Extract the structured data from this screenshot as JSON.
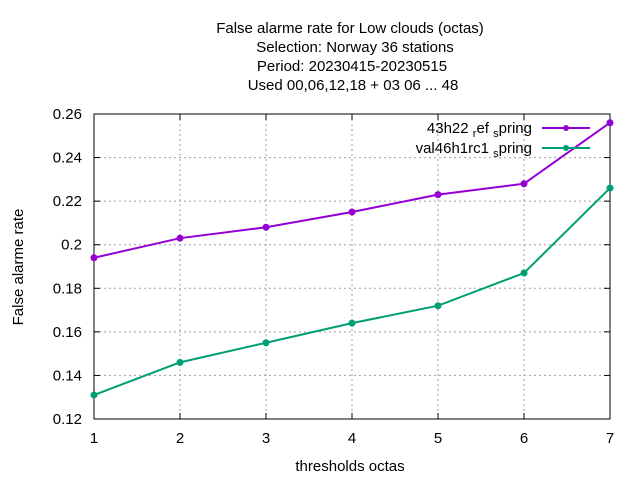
{
  "chart_data": {
    "type": "line",
    "title_lines": [
      "False alarme rate  for Low clouds (octas)",
      "Selection: Norway      36 stations",
      "Period: 20230415-20230515",
      "Used  00,06,12,18  + 03 06 ... 48"
    ],
    "xlabel": "thresholds octas",
    "ylabel": "False alarme rate",
    "x": [
      1,
      2,
      3,
      4,
      5,
      6,
      7
    ],
    "xlim": [
      1,
      7
    ],
    "ylim": [
      0.12,
      0.26
    ],
    "yticks": [
      0.12,
      0.14,
      0.16,
      0.18,
      0.2,
      0.22,
      0.24,
      0.26
    ],
    "ytick_labels": [
      "0.12",
      "0.14",
      "0.16",
      "0.18",
      "0.2",
      "0.22",
      "0.24",
      "0.26"
    ],
    "xtick_labels": [
      "1",
      "2",
      "3",
      "4",
      "5",
      "6",
      "7"
    ],
    "grid": true,
    "legend_position": "top-right",
    "series": [
      {
        "name_main": "43h22",
        "name_sub1": "r",
        "name_mid": "ef",
        "name_sub2": "s",
        "name_end": "pring",
        "color": "#9400d3",
        "values": [
          0.194,
          0.203,
          0.208,
          0.215,
          0.223,
          0.228,
          0.256
        ]
      },
      {
        "name_main": "val46h1rc1",
        "name_sub1": "",
        "name_mid": "",
        "name_sub2": "s",
        "name_end": "pring",
        "color": "#009e73",
        "values": [
          0.131,
          0.146,
          0.155,
          0.164,
          0.172,
          0.187,
          0.226
        ]
      }
    ]
  }
}
